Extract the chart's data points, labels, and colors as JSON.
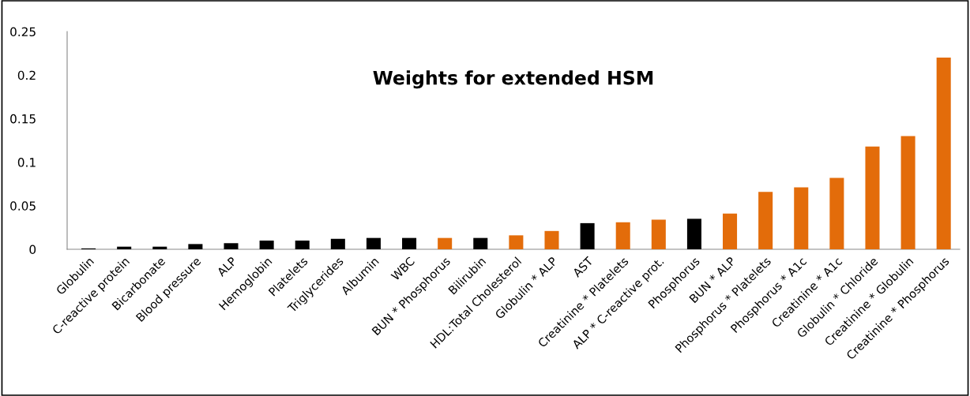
{
  "chart_data": {
    "type": "bar",
    "title": "Weights for extended HSM",
    "categories": [
      "Globulin",
      "C-reactive protein",
      "Bicarbonate",
      "Blood pressure",
      "ALP",
      "Hemoglobin",
      "Platelets",
      "Triglycerides",
      "Albumin",
      "WBC",
      "BUN * Phosphorus",
      "Bilirubin",
      "HDL:Total Cholesterol",
      "Globulin * ALP",
      "AST",
      "Creatinine * Platelets",
      "ALP * C-reactive prot.",
      "Phosphorus",
      "BUN * ALP",
      "Phosphorus * Platelets",
      "Phosphorus * A1c",
      "Creatinine * A1c",
      "Globulin * Chloride",
      "Creatinine * Globulin",
      "Creatinine * Phosphorus"
    ],
    "values": [
      0.001,
      0.003,
      0.003,
      0.006,
      0.007,
      0.01,
      0.01,
      0.012,
      0.013,
      0.013,
      0.013,
      0.013,
      0.016,
      0.021,
      0.03,
      0.031,
      0.034,
      0.035,
      0.041,
      0.066,
      0.071,
      0.082,
      0.118,
      0.13,
      0.22
    ],
    "colors": [
      "#000000",
      "#000000",
      "#000000",
      "#000000",
      "#000000",
      "#000000",
      "#000000",
      "#000000",
      "#000000",
      "#000000",
      "#e36c0a",
      "#000000",
      "#e36c0a",
      "#e36c0a",
      "#000000",
      "#e36c0a",
      "#e36c0a",
      "#000000",
      "#e36c0a",
      "#e36c0a",
      "#e36c0a",
      "#e36c0a",
      "#e36c0a",
      "#e36c0a",
      "#e36c0a"
    ],
    "ylim": [
      0,
      0.25
    ],
    "yticks": [
      {
        "value": 0,
        "label": "0"
      },
      0.05,
      0.1,
      0.15,
      0.2,
      0.25
    ],
    "grid": false
  }
}
